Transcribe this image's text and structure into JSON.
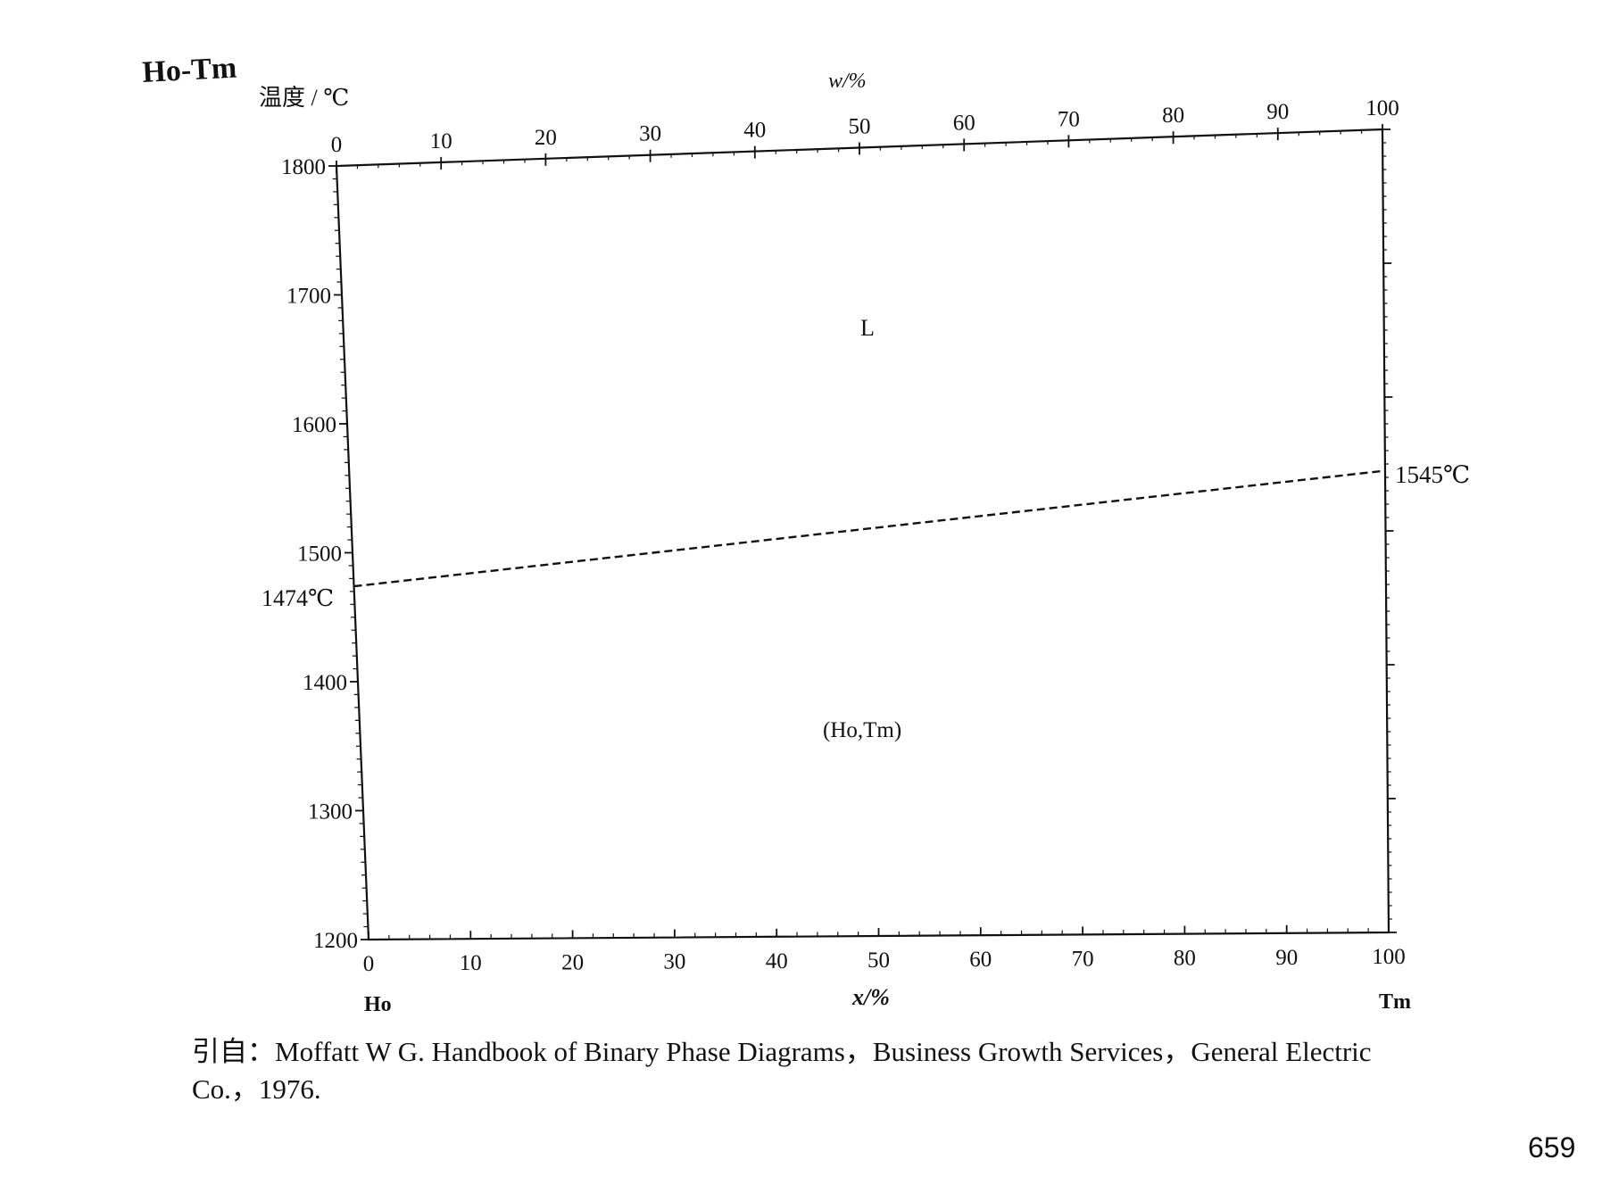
{
  "chart_data": {
    "type": "line",
    "title": "Ho-Tm",
    "ylabel": "温度 / ℃",
    "xlabel": "x/%",
    "top_axis_label": "w/%",
    "ylim": [
      1200,
      1800
    ],
    "xlim": [
      0,
      100
    ],
    "y_ticks": [
      "1200",
      "1300",
      "1400",
      "1500",
      "1600",
      "1700",
      "1800"
    ],
    "x_ticks": [
      "0",
      "10",
      "20",
      "30",
      "40",
      "50",
      "60",
      "70",
      "80",
      "90",
      "100"
    ],
    "top_ticks": [
      "0",
      "10",
      "20",
      "30",
      "40",
      "50",
      "60",
      "70",
      "80",
      "90",
      "100"
    ],
    "left_element": "Ho",
    "right_element": "Tm",
    "series": [
      {
        "style": "dashed",
        "x": [
          0,
          100
        ],
        "y": [
          1474,
          1545
        ]
      }
    ],
    "annotations": {
      "left_temp": "1474℃",
      "right_temp": "1545℃",
      "liquid_region": "L",
      "solid_region": "(Ho,Tm)"
    },
    "grid": false
  },
  "citation": {
    "line1": "引自：Moffatt W G.  Handbook of Binary Phase Diagrams，Business Growth Services，General Electric",
    "line2": "Co.，1976."
  },
  "page_number": "659"
}
